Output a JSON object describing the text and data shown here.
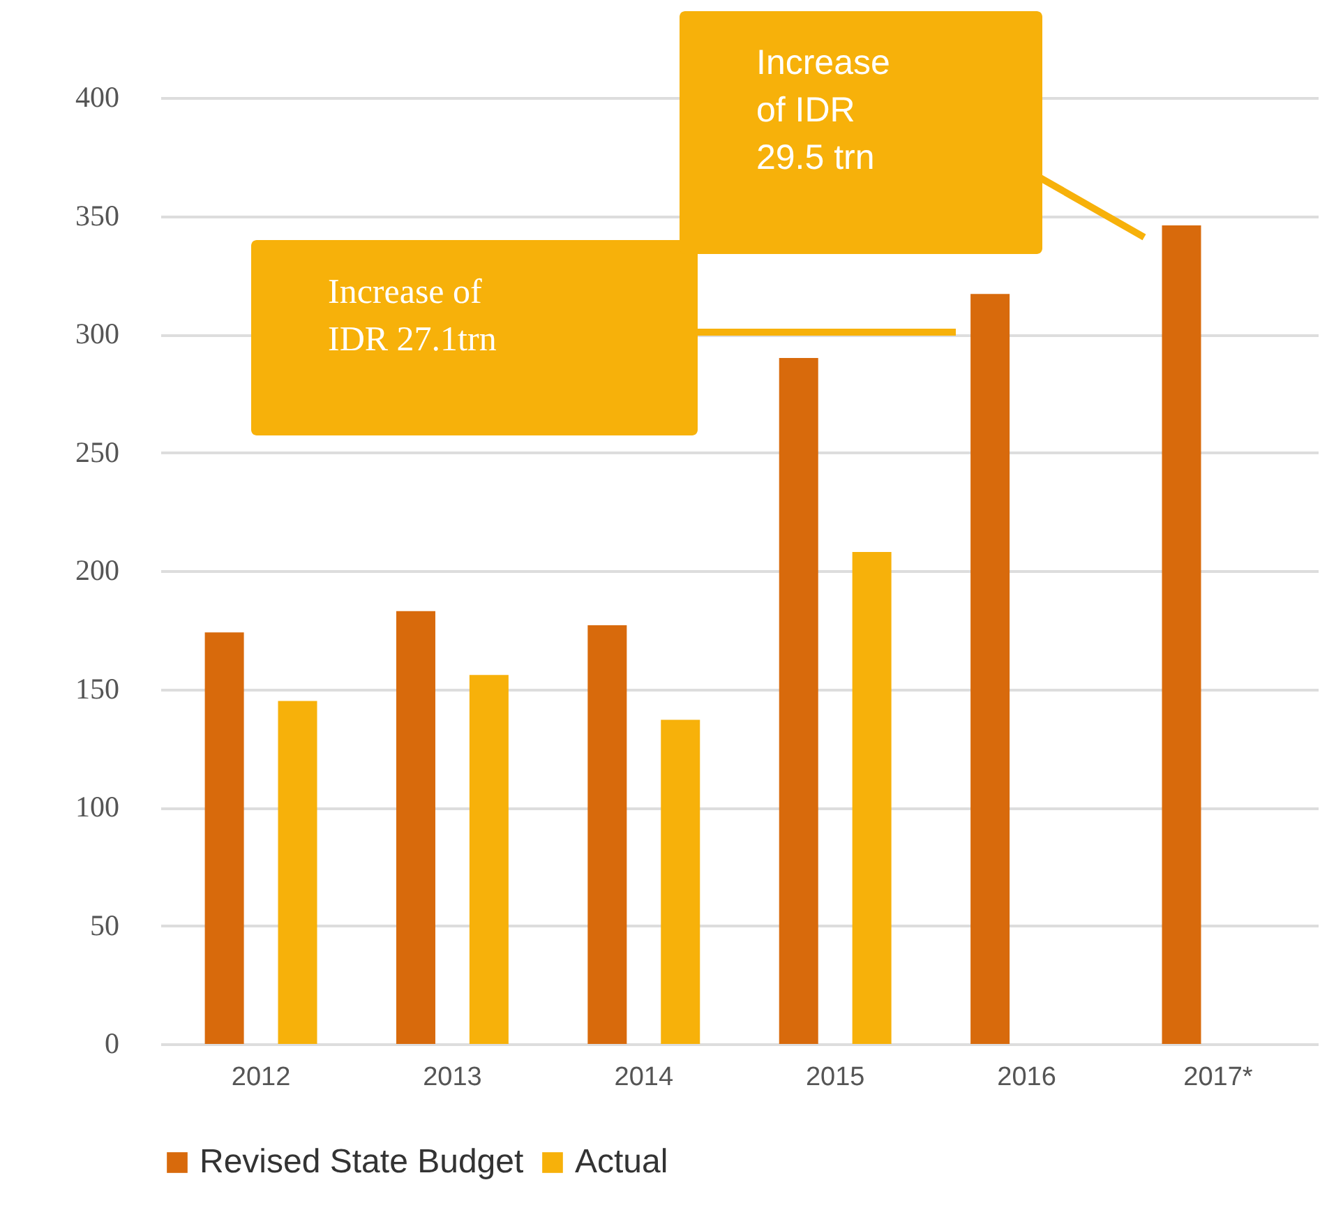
{
  "chart_data": {
    "type": "bar",
    "categories": [
      "2012",
      "2013",
      "2014",
      "2015",
      "2016",
      "2017*"
    ],
    "series": [
      {
        "name": "Revised State Budget",
        "color": "#d86a0c",
        "values": [
          174,
          183,
          177,
          290,
          317,
          346
        ]
      },
      {
        "name": "Actual",
        "color": "#f7b10a",
        "values": [
          145,
          156,
          137,
          208,
          null,
          null
        ]
      }
    ],
    "ylim": [
      0,
      400
    ],
    "yticks": [
      0,
      50,
      100,
      150,
      200,
      250,
      300,
      350,
      400
    ],
    "grid": "y",
    "legend": "bottom",
    "annotations": [
      "Increase of IDR 27.1trn",
      "Increase of IDR 29.5 trn"
    ]
  }
}
